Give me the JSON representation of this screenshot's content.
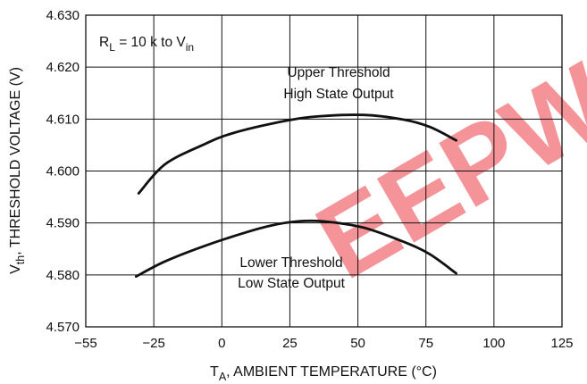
{
  "chart_data": {
    "type": "line",
    "xlabel": {
      "main": "T",
      "sub": "A",
      "rest": ", AMBIENT TEMPERATURE (°C)"
    },
    "ylabel": {
      "main": "V",
      "sub": "th",
      "rest": ", THRESHOLD VOLTAGE (V)"
    },
    "xlim": [
      -55,
      125
    ],
    "ylim": [
      4.57,
      4.63
    ],
    "x_ticks": [
      "−55",
      "−25",
      "0",
      "25",
      "50",
      "75",
      "100",
      "125"
    ],
    "y_ticks": [
      "4.570",
      "4.580",
      "4.590",
      "4.600",
      "4.610",
      "4.620",
      "4.630"
    ],
    "grid": true,
    "condition": {
      "p1": "R",
      "s1": "L",
      "p2": " = 10 k to V",
      "s2": "in"
    },
    "series": [
      {
        "name": "Upper Threshold High State Output",
        "label_lines": [
          "Upper Threshold",
          "High State Output"
        ],
        "points": [
          [
            -35,
            4.5957
          ],
          [
            -25,
            4.6013
          ],
          [
            -10,
            4.6052
          ],
          [
            0,
            4.6072
          ],
          [
            15,
            4.6091
          ],
          [
            30,
            4.6104
          ],
          [
            50,
            4.6108
          ],
          [
            65,
            4.6099
          ],
          [
            75,
            4.6085
          ],
          [
            85,
            4.6059
          ]
        ]
      },
      {
        "name": "Lower Threshold Low State Output",
        "label_lines": [
          "Lower Threshold",
          "Low State Output"
        ],
        "points": [
          [
            -36,
            4.5797
          ],
          [
            -25,
            4.5826
          ],
          [
            -10,
            4.5856
          ],
          [
            5,
            4.5881
          ],
          [
            15,
            4.5895
          ],
          [
            25,
            4.5903
          ],
          [
            35,
            4.5903
          ],
          [
            50,
            4.5891
          ],
          [
            65,
            4.5864
          ],
          [
            75,
            4.584
          ],
          [
            85,
            4.5803
          ]
        ]
      }
    ],
    "watermark": "EEPW",
    "watermark_color": "#e8141e"
  }
}
